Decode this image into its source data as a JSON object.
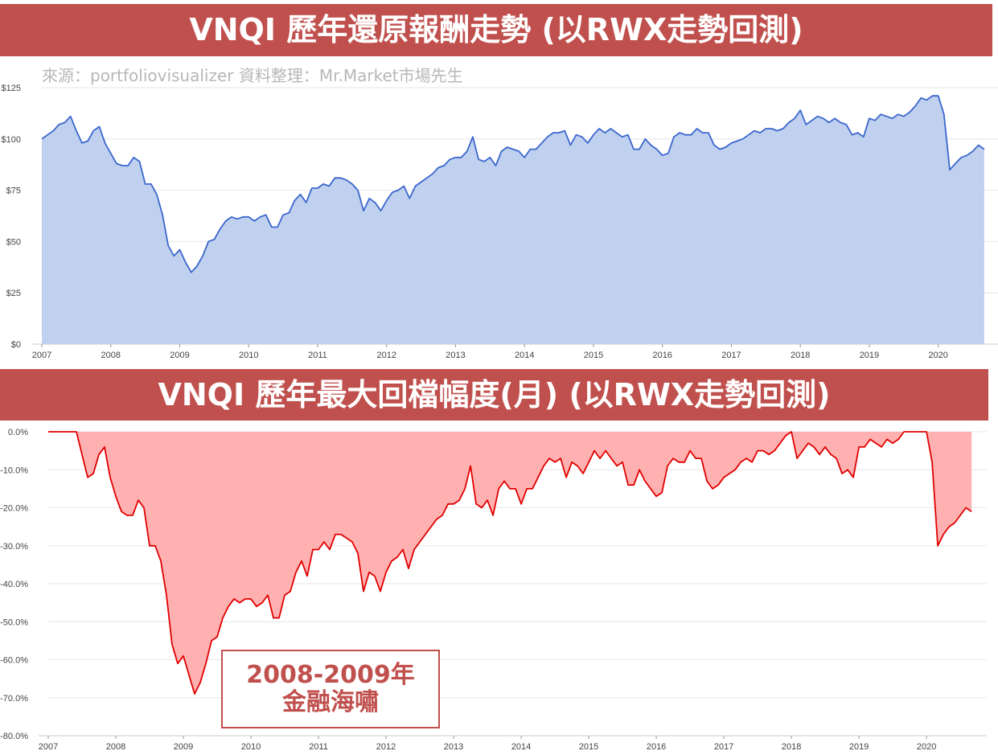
{
  "header": {
    "title_top": "VNQI 歷年還原報酬走勢 (以RWX走勢回測)",
    "source": "來源：portfoliovisualizer 資料整理：Mr.Market市場先生",
    "title_bottom": "VNQI 歷年最大回檔幅度(月) (以RWX走勢回測)"
  },
  "annotation": {
    "line1": "2008-2009年",
    "line2": "金融海嘯"
  },
  "chart_data": [
    {
      "type": "area",
      "title": "VNQI 歷年還原報酬走勢 (以RWX走勢回測)",
      "color": "#3a66cc",
      "fill": "#c0d1f0",
      "ylim": [
        0,
        125
      ],
      "yticks": [
        0,
        25,
        50,
        75,
        100,
        125
      ],
      "ytick_labels": [
        "$0",
        "$25",
        "$50",
        "$75",
        "$100",
        "$125"
      ],
      "xlim": [
        2007.0,
        2020.82
      ],
      "xticks": [
        2007,
        2008,
        2009,
        2010,
        2011,
        2012,
        2013,
        2014,
        2015,
        2016,
        2017,
        2018,
        2019,
        2020
      ],
      "grid": true,
      "x_start": 2007.0,
      "x_step_months": 1,
      "series": [
        {
          "values": [
            100,
            102,
            104,
            107,
            108,
            111,
            104,
            98,
            99,
            104,
            106,
            98,
            93,
            88,
            87,
            87,
            91,
            89,
            78,
            78,
            73,
            63,
            48,
            43,
            46,
            40,
            35,
            38,
            43,
            50,
            51,
            56,
            60,
            62,
            61,
            62,
            62,
            60,
            62,
            63,
            57,
            57,
            63,
            64,
            70,
            73,
            69,
            76,
            76,
            78,
            77,
            81,
            81,
            80,
            78,
            75,
            65,
            71,
            69,
            65,
            70,
            74,
            75,
            77,
            71,
            77,
            79,
            81,
            83,
            86,
            87,
            90,
            91,
            91,
            94,
            101,
            90,
            89,
            91,
            87,
            94,
            96,
            95,
            94,
            91,
            95,
            95,
            98,
            101,
            103,
            103,
            104,
            97,
            102,
            101,
            98,
            102,
            105,
            103,
            105,
            103,
            101,
            102,
            95,
            95,
            100,
            97,
            95,
            92,
            93,
            101,
            103,
            102,
            102,
            105,
            103,
            103,
            97,
            95,
            96,
            98,
            99,
            100,
            102,
            104,
            103,
            105,
            105,
            104,
            105,
            108,
            110,
            114,
            107,
            109,
            111,
            110,
            108,
            110,
            108,
            107,
            102,
            103,
            101,
            110,
            109,
            112,
            111,
            110,
            112,
            111,
            113,
            116,
            120,
            119,
            121,
            121,
            112,
            85,
            88,
            91,
            92,
            94,
            97,
            95
          ]
        }
      ]
    },
    {
      "type": "area",
      "title": "VNQI 歷年最大回檔幅度(月) (以RWX走勢回測)",
      "color": "#e00000",
      "fill": "#ffb1b1",
      "ylim": [
        -80,
        0
      ],
      "yticks": [
        0,
        -10,
        -20,
        -30,
        -40,
        -50,
        -60,
        -70,
        -80
      ],
      "ytick_labels": [
        "0.0%",
        "-10.0%",
        "-20.0%",
        "-30.0%",
        "-40.0%",
        "-50.0%",
        "-60.0%",
        "-70.0%",
        "-80.0%"
      ],
      "xlim": [
        2007.0,
        2020.82
      ],
      "xticks": [
        2007,
        2008,
        2009,
        2010,
        2011,
        2012,
        2013,
        2014,
        2015,
        2016,
        2017,
        2018,
        2019,
        2020
      ],
      "grid": true,
      "x_start": 2007.0,
      "x_step_months": 1,
      "series": [
        {
          "values": [
            0,
            0,
            0,
            0,
            0,
            0,
            -6,
            -12,
            -11,
            -6,
            -4,
            -12,
            -17,
            -21,
            -22,
            -22,
            -18,
            -20,
            -30,
            -30,
            -34,
            -43,
            -56,
            -61,
            -59,
            -64,
            -69,
            -66,
            -61,
            -55,
            -54,
            -49,
            -46,
            -44,
            -45,
            -44,
            -44,
            -46,
            -45,
            -43,
            -49,
            -49,
            -43,
            -42,
            -37,
            -34,
            -38,
            -31,
            -31,
            -29,
            -31,
            -27,
            -27,
            -28,
            -29,
            -32,
            -42,
            -37,
            -38,
            -42,
            -37,
            -34,
            -33,
            -31,
            -36,
            -31,
            -29,
            -27,
            -25,
            -23,
            -22,
            -19,
            -19,
            -18,
            -15,
            -9,
            -19,
            -20,
            -18,
            -22,
            -15,
            -13,
            -15,
            -15,
            -19,
            -15,
            -15,
            -12,
            -9,
            -7,
            -8,
            -7,
            -12,
            -8,
            -9,
            -11,
            -8,
            -5,
            -7,
            -5,
            -7,
            -9,
            -8,
            -14,
            -14,
            -10,
            -13,
            -15,
            -17,
            -16,
            -9,
            -7,
            -8,
            -8,
            -5,
            -7,
            -7,
            -13,
            -15,
            -14,
            -12,
            -11,
            -10,
            -8,
            -7,
            -8,
            -5,
            -5,
            -6,
            -5,
            -3,
            -1,
            0,
            -7,
            -5,
            -3,
            -4,
            -6,
            -4,
            -6,
            -7,
            -11,
            -10,
            -12,
            -4,
            -4,
            -2,
            -3,
            -4,
            -2,
            -3,
            -2,
            0,
            0,
            0,
            0,
            0,
            -8,
            -30,
            -27,
            -25,
            -24,
            -22,
            -20,
            -21
          ]
        }
      ]
    }
  ]
}
